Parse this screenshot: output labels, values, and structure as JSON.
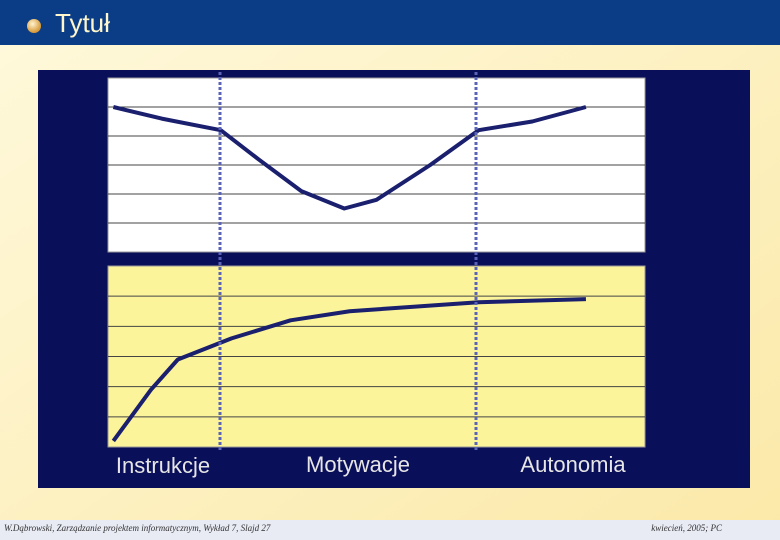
{
  "header": {
    "title": "Tytuł"
  },
  "phases": [
    "Instrukcje",
    "Motywacje",
    "Autonomia"
  ],
  "chart_data": [
    {
      "type": "line",
      "color": "#1a1f6e",
      "background": "#ffffff",
      "x": [
        0.1,
        1,
        2.1,
        2.8,
        3.6,
        4.4,
        5,
        6,
        6.9,
        7.9,
        8.9
      ],
      "values": [
        5,
        4.6,
        4.2,
        3.2,
        2.1,
        1.5,
        1.8,
        3,
        4.2,
        4.5,
        5
      ],
      "xlim": [
        0,
        10
      ],
      "ylim": [
        0,
        6
      ],
      "yticks": [
        1,
        2,
        3,
        4,
        5
      ],
      "grid": true
    },
    {
      "type": "line",
      "color": "#1a1f6e",
      "background": "#fbf49a",
      "x": [
        0.1,
        0.8,
        1.3,
        2.3,
        3.4,
        4.5,
        6.9,
        8.9
      ],
      "values": [
        0.2,
        1.9,
        2.9,
        3.6,
        4.2,
        4.5,
        4.8,
        4.9
      ],
      "xlim": [
        0,
        10
      ],
      "ylim": [
        0,
        6
      ],
      "yticks": [
        1,
        2,
        3,
        4,
        5
      ],
      "grid": true
    }
  ],
  "footer": {
    "left": "W.Dąbrowski, Zarządzanie projektem informatycznym, Wykład 7, Slajd 27",
    "right": "kwiecień, 2005; PC"
  }
}
